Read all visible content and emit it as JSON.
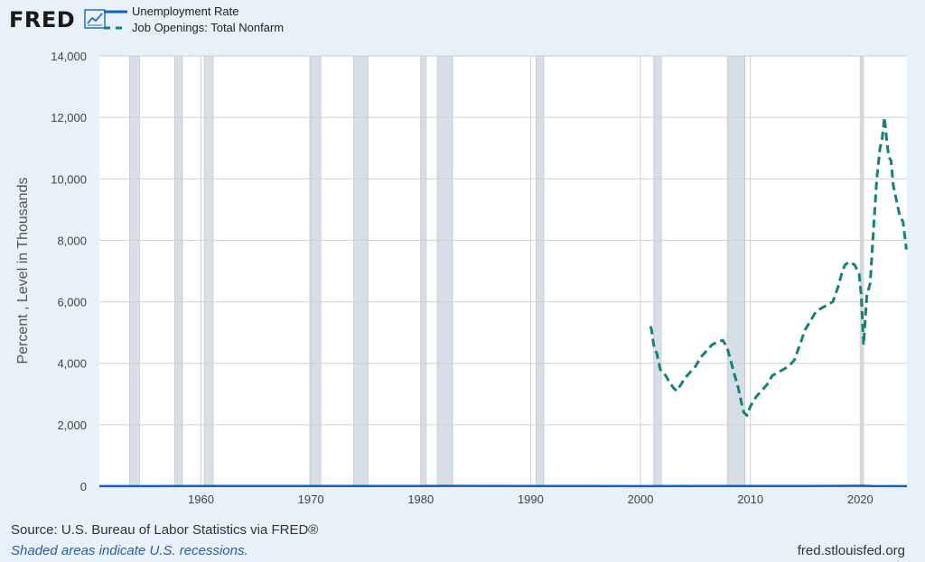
{
  "header": {
    "logo_text": "FRED",
    "logo_icon": "line-chart-icon"
  },
  "legend": [
    {
      "label": "Unemployment Rate",
      "color": "#0b63c9",
      "style": "solid"
    },
    {
      "label": "Job Openings: Total Nonfarm",
      "color": "#138278",
      "style": "dashed"
    }
  ],
  "footer": {
    "source": "Source: U.S. Bureau of Labor Statistics via FRED®",
    "note": "Shaded areas indicate U.S. recessions.",
    "site": "fred.stlouisfed.org"
  },
  "colors": {
    "page_background": "#e8f0f9",
    "plot_background": "#ffffff",
    "grid": "#d0d0d0",
    "recession_fill": "#d8dee6",
    "unemployment": "#0b63c9",
    "job_openings": "#138278"
  },
  "chart_data": {
    "type": "line",
    "title": "",
    "xlabel": "",
    "ylabel": "Percent , Level in Thousands",
    "xlim": [
      1950.75,
      2024.25
    ],
    "ylim": [
      0,
      14000
    ],
    "yticks": [
      0,
      2000,
      4000,
      6000,
      8000,
      10000,
      12000,
      14000
    ],
    "ytick_labels": [
      "0",
      "2,000",
      "4,000",
      "6,000",
      "8,000",
      "10,000",
      "12,000",
      "14,000"
    ],
    "xticks": [
      1960,
      1970,
      1980,
      1990,
      2000,
      2010,
      2020
    ],
    "xtick_labels": [
      "1960",
      "1970",
      "1980",
      "1990",
      "2000",
      "2010",
      "2020"
    ],
    "grid": true,
    "legend_position": "top-left",
    "recessions": [
      [
        1953.5,
        1954.4
      ],
      [
        1957.6,
        1958.3
      ],
      [
        1960.3,
        1961.1
      ],
      [
        1969.9,
        1970.9
      ],
      [
        1973.9,
        1975.2
      ],
      [
        1980.0,
        1980.5
      ],
      [
        1981.5,
        1982.9
      ],
      [
        1990.5,
        1991.2
      ],
      [
        2001.2,
        2001.9
      ],
      [
        2007.9,
        2009.5
      ],
      [
        2020.1,
        2020.3
      ]
    ],
    "series": [
      {
        "name": "Unemployment Rate",
        "style": "solid",
        "x": [
          1950.75,
          1955,
          1960,
          1965,
          1970,
          1975,
          1980,
          1983,
          1990,
          1995,
          2000,
          2005,
          2010,
          2015,
          2020.3,
          2021,
          2024.25
        ],
        "y": [
          4.3,
          4.4,
          5.5,
          4.5,
          4.9,
          8.5,
          7.2,
          10.4,
          5.6,
          5.6,
          4.0,
          5.0,
          9.6,
          5.3,
          14.7,
          5.4,
          3.9
        ]
      },
      {
        "name": "Job Openings: Total Nonfarm",
        "style": "dashed",
        "x": [
          2000.9,
          2001.0,
          2001.2,
          2001.5,
          2001.8,
          2002.0,
          2002.3,
          2002.6,
          2003.0,
          2003.3,
          2003.5,
          2004.0,
          2004.5,
          2005.0,
          2005.5,
          2006.0,
          2006.5,
          2007.0,
          2007.5,
          2007.9,
          2008.2,
          2008.5,
          2008.9,
          2009.2,
          2009.4,
          2009.7,
          2010.0,
          2010.5,
          2011.0,
          2011.5,
          2012.0,
          2012.5,
          2013.0,
          2013.5,
          2014.0,
          2014.5,
          2015.0,
          2015.5,
          2016.0,
          2016.5,
          2017.0,
          2017.5,
          2018.0,
          2018.3,
          2018.6,
          2019.0,
          2019.5,
          2019.9,
          2020.1,
          2020.3,
          2020.6,
          2020.9,
          2021.2,
          2021.5,
          2021.8,
          2022.0,
          2022.2,
          2022.4,
          2022.6,
          2022.8,
          2023.0,
          2023.3,
          2023.6,
          2023.9,
          2024.2
        ],
        "y": [
          5200,
          5100,
          4600,
          4300,
          3800,
          3700,
          3600,
          3400,
          3200,
          3100,
          3200,
          3500,
          3700,
          3900,
          4200,
          4400,
          4600,
          4700,
          4750,
          4500,
          4100,
          3700,
          3200,
          2700,
          2400,
          2300,
          2600,
          2900,
          3100,
          3300,
          3600,
          3700,
          3800,
          3900,
          4100,
          4600,
          5100,
          5400,
          5700,
          5800,
          5900,
          6000,
          6500,
          6900,
          7200,
          7300,
          7200,
          6900,
          6200,
          4600,
          6200,
          6600,
          8300,
          10000,
          11000,
          11300,
          12000,
          11300,
          10700,
          10600,
          9800,
          9300,
          8800,
          8600,
          7700
        ]
      }
    ]
  }
}
